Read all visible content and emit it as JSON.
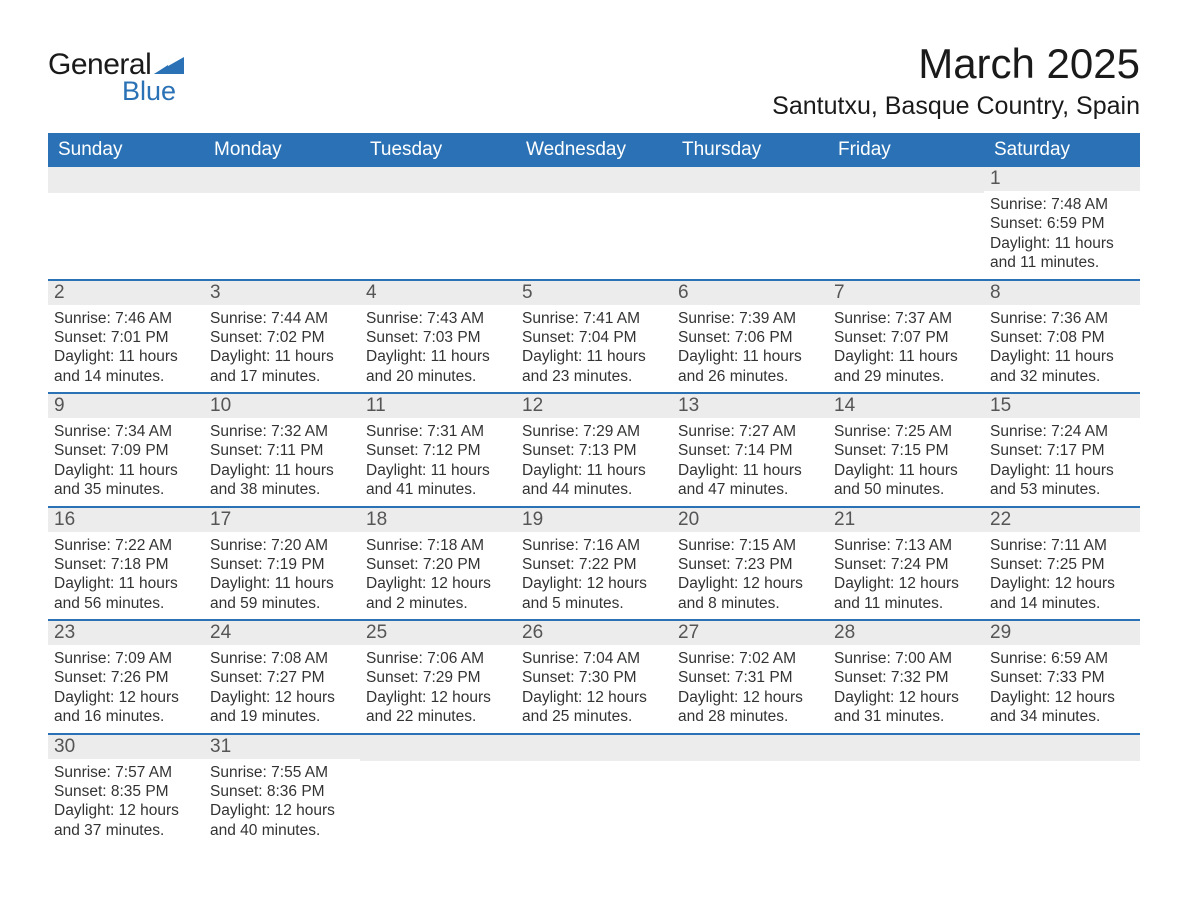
{
  "brand": {
    "word1": "General",
    "word2": "Blue",
    "text_color": "#1a1a1a",
    "accent_color": "#2a72b5"
  },
  "title": "March 2025",
  "location": "Santutxu, Basque Country, Spain",
  "colors": {
    "header_bg": "#2a72b5",
    "header_text": "#ffffff",
    "daynum_bg": "#ececec",
    "daynum_text": "#555555",
    "body_text": "#333333",
    "row_border": "#2a72b5",
    "page_bg": "#ffffff"
  },
  "typography": {
    "title_fontsize": 42,
    "location_fontsize": 25,
    "weekday_fontsize": 19,
    "daynum_fontsize": 19,
    "body_fontsize": 15.5,
    "font_family": "Arial"
  },
  "weekdays": [
    "Sunday",
    "Monday",
    "Tuesday",
    "Wednesday",
    "Thursday",
    "Friday",
    "Saturday"
  ],
  "weeks": [
    [
      {
        "day": "",
        "sunrise": "",
        "sunset": "",
        "daylight": ""
      },
      {
        "day": "",
        "sunrise": "",
        "sunset": "",
        "daylight": ""
      },
      {
        "day": "",
        "sunrise": "",
        "sunset": "",
        "daylight": ""
      },
      {
        "day": "",
        "sunrise": "",
        "sunset": "",
        "daylight": ""
      },
      {
        "day": "",
        "sunrise": "",
        "sunset": "",
        "daylight": ""
      },
      {
        "day": "",
        "sunrise": "",
        "sunset": "",
        "daylight": ""
      },
      {
        "day": "1",
        "sunrise": "Sunrise: 7:48 AM",
        "sunset": "Sunset: 6:59 PM",
        "daylight": "Daylight: 11 hours and 11 minutes."
      }
    ],
    [
      {
        "day": "2",
        "sunrise": "Sunrise: 7:46 AM",
        "sunset": "Sunset: 7:01 PM",
        "daylight": "Daylight: 11 hours and 14 minutes."
      },
      {
        "day": "3",
        "sunrise": "Sunrise: 7:44 AM",
        "sunset": "Sunset: 7:02 PM",
        "daylight": "Daylight: 11 hours and 17 minutes."
      },
      {
        "day": "4",
        "sunrise": "Sunrise: 7:43 AM",
        "sunset": "Sunset: 7:03 PM",
        "daylight": "Daylight: 11 hours and 20 minutes."
      },
      {
        "day": "5",
        "sunrise": "Sunrise: 7:41 AM",
        "sunset": "Sunset: 7:04 PM",
        "daylight": "Daylight: 11 hours and 23 minutes."
      },
      {
        "day": "6",
        "sunrise": "Sunrise: 7:39 AM",
        "sunset": "Sunset: 7:06 PM",
        "daylight": "Daylight: 11 hours and 26 minutes."
      },
      {
        "day": "7",
        "sunrise": "Sunrise: 7:37 AM",
        "sunset": "Sunset: 7:07 PM",
        "daylight": "Daylight: 11 hours and 29 minutes."
      },
      {
        "day": "8",
        "sunrise": "Sunrise: 7:36 AM",
        "sunset": "Sunset: 7:08 PM",
        "daylight": "Daylight: 11 hours and 32 minutes."
      }
    ],
    [
      {
        "day": "9",
        "sunrise": "Sunrise: 7:34 AM",
        "sunset": "Sunset: 7:09 PM",
        "daylight": "Daylight: 11 hours and 35 minutes."
      },
      {
        "day": "10",
        "sunrise": "Sunrise: 7:32 AM",
        "sunset": "Sunset: 7:11 PM",
        "daylight": "Daylight: 11 hours and 38 minutes."
      },
      {
        "day": "11",
        "sunrise": "Sunrise: 7:31 AM",
        "sunset": "Sunset: 7:12 PM",
        "daylight": "Daylight: 11 hours and 41 minutes."
      },
      {
        "day": "12",
        "sunrise": "Sunrise: 7:29 AM",
        "sunset": "Sunset: 7:13 PM",
        "daylight": "Daylight: 11 hours and 44 minutes."
      },
      {
        "day": "13",
        "sunrise": "Sunrise: 7:27 AM",
        "sunset": "Sunset: 7:14 PM",
        "daylight": "Daylight: 11 hours and 47 minutes."
      },
      {
        "day": "14",
        "sunrise": "Sunrise: 7:25 AM",
        "sunset": "Sunset: 7:15 PM",
        "daylight": "Daylight: 11 hours and 50 minutes."
      },
      {
        "day": "15",
        "sunrise": "Sunrise: 7:24 AM",
        "sunset": "Sunset: 7:17 PM",
        "daylight": "Daylight: 11 hours and 53 minutes."
      }
    ],
    [
      {
        "day": "16",
        "sunrise": "Sunrise: 7:22 AM",
        "sunset": "Sunset: 7:18 PM",
        "daylight": "Daylight: 11 hours and 56 minutes."
      },
      {
        "day": "17",
        "sunrise": "Sunrise: 7:20 AM",
        "sunset": "Sunset: 7:19 PM",
        "daylight": "Daylight: 11 hours and 59 minutes."
      },
      {
        "day": "18",
        "sunrise": "Sunrise: 7:18 AM",
        "sunset": "Sunset: 7:20 PM",
        "daylight": "Daylight: 12 hours and 2 minutes."
      },
      {
        "day": "19",
        "sunrise": "Sunrise: 7:16 AM",
        "sunset": "Sunset: 7:22 PM",
        "daylight": "Daylight: 12 hours and 5 minutes."
      },
      {
        "day": "20",
        "sunrise": "Sunrise: 7:15 AM",
        "sunset": "Sunset: 7:23 PM",
        "daylight": "Daylight: 12 hours and 8 minutes."
      },
      {
        "day": "21",
        "sunrise": "Sunrise: 7:13 AM",
        "sunset": "Sunset: 7:24 PM",
        "daylight": "Daylight: 12 hours and 11 minutes."
      },
      {
        "day": "22",
        "sunrise": "Sunrise: 7:11 AM",
        "sunset": "Sunset: 7:25 PM",
        "daylight": "Daylight: 12 hours and 14 minutes."
      }
    ],
    [
      {
        "day": "23",
        "sunrise": "Sunrise: 7:09 AM",
        "sunset": "Sunset: 7:26 PM",
        "daylight": "Daylight: 12 hours and 16 minutes."
      },
      {
        "day": "24",
        "sunrise": "Sunrise: 7:08 AM",
        "sunset": "Sunset: 7:27 PM",
        "daylight": "Daylight: 12 hours and 19 minutes."
      },
      {
        "day": "25",
        "sunrise": "Sunrise: 7:06 AM",
        "sunset": "Sunset: 7:29 PM",
        "daylight": "Daylight: 12 hours and 22 minutes."
      },
      {
        "day": "26",
        "sunrise": "Sunrise: 7:04 AM",
        "sunset": "Sunset: 7:30 PM",
        "daylight": "Daylight: 12 hours and 25 minutes."
      },
      {
        "day": "27",
        "sunrise": "Sunrise: 7:02 AM",
        "sunset": "Sunset: 7:31 PM",
        "daylight": "Daylight: 12 hours and 28 minutes."
      },
      {
        "day": "28",
        "sunrise": "Sunrise: 7:00 AM",
        "sunset": "Sunset: 7:32 PM",
        "daylight": "Daylight: 12 hours and 31 minutes."
      },
      {
        "day": "29",
        "sunrise": "Sunrise: 6:59 AM",
        "sunset": "Sunset: 7:33 PM",
        "daylight": "Daylight: 12 hours and 34 minutes."
      }
    ],
    [
      {
        "day": "30",
        "sunrise": "Sunrise: 7:57 AM",
        "sunset": "Sunset: 8:35 PM",
        "daylight": "Daylight: 12 hours and 37 minutes."
      },
      {
        "day": "31",
        "sunrise": "Sunrise: 7:55 AM",
        "sunset": "Sunset: 8:36 PM",
        "daylight": "Daylight: 12 hours and 40 minutes."
      },
      {
        "day": "",
        "sunrise": "",
        "sunset": "",
        "daylight": ""
      },
      {
        "day": "",
        "sunrise": "",
        "sunset": "",
        "daylight": ""
      },
      {
        "day": "",
        "sunrise": "",
        "sunset": "",
        "daylight": ""
      },
      {
        "day": "",
        "sunrise": "",
        "sunset": "",
        "daylight": ""
      },
      {
        "day": "",
        "sunrise": "",
        "sunset": "",
        "daylight": ""
      }
    ]
  ]
}
